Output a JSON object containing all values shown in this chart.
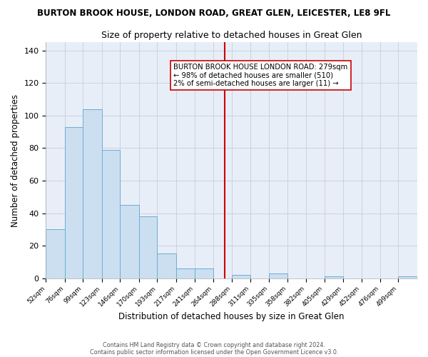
{
  "title": "BURTON BROOK HOUSE, LONDON ROAD, GREAT GLEN, LEICESTER, LE8 9FL",
  "subtitle": "Size of property relative to detached houses in Great Glen",
  "xlabel": "Distribution of detached houses by size in Great Glen",
  "ylabel": "Number of detached properties",
  "bin_edges": [
    52,
    76,
    99,
    123,
    146,
    170,
    193,
    217,
    241,
    264,
    288,
    311,
    335,
    358,
    382,
    405,
    429,
    452,
    476,
    499,
    523
  ],
  "bin_heights": [
    30,
    93,
    104,
    79,
    45,
    38,
    15,
    6,
    6,
    0,
    2,
    0,
    3,
    0,
    0,
    1,
    0,
    0,
    0,
    1
  ],
  "bar_facecolor": "#ccdff0",
  "bar_edgecolor": "#6aadd5",
  "vline_x": 279,
  "vline_color": "#cc0000",
  "annotation_title": "BURTON BROOK HOUSE LONDON ROAD: 279sqm",
  "annotation_line1": "← 98% of detached houses are smaller (510)",
  "annotation_line2": "2% of semi-detached houses are larger (11) →",
  "ylim": [
    0,
    145
  ],
  "yticks": [
    0,
    20,
    40,
    60,
    80,
    100,
    120,
    140
  ],
  "footer1": "Contains HM Land Registry data © Crown copyright and database right 2024.",
  "footer2": "Contains public sector information licensed under the Open Government Licence v3.0.",
  "bg_color": "#ffffff",
  "plot_bg_color": "#e8eef8",
  "grid_color": "#c5cedc",
  "annot_box_color": "#cc0000"
}
